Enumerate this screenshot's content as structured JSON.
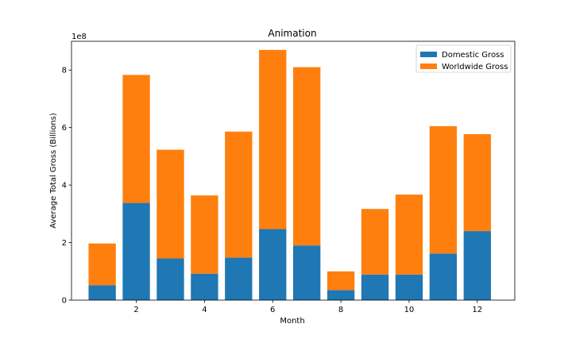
{
  "chart_data": {
    "type": "bar",
    "stacked": true,
    "title": "Animation",
    "xlabel": "Month",
    "ylabel": "Average Total Gross (Billions)",
    "offset_label": "1e8",
    "x": [
      1,
      2,
      3,
      4,
      5,
      6,
      7,
      8,
      9,
      10,
      11,
      12
    ],
    "xticks": [
      2,
      4,
      6,
      8,
      10,
      12
    ],
    "xlim": [
      0.1,
      13.1
    ],
    "ylim": [
      0,
      900000000
    ],
    "yticks": [
      0,
      200000000,
      400000000,
      600000000,
      800000000
    ],
    "ytick_labels": [
      "0",
      "2",
      "4",
      "6",
      "8"
    ],
    "grid": false,
    "legend_position": "upper right",
    "series": [
      {
        "name": "Domestic Gross",
        "color": "#1f77b4",
        "values": [
          52000000,
          338000000,
          145000000,
          92000000,
          148000000,
          247000000,
          190000000,
          35000000,
          89000000,
          89000000,
          162000000,
          240000000
        ]
      },
      {
        "name": "Worldwide Gross",
        "color": "#ff7f0e",
        "values": [
          145000000,
          445000000,
          378000000,
          272000000,
          438000000,
          623000000,
          620000000,
          65000000,
          228000000,
          278000000,
          443000000,
          337000000
        ]
      }
    ]
  }
}
